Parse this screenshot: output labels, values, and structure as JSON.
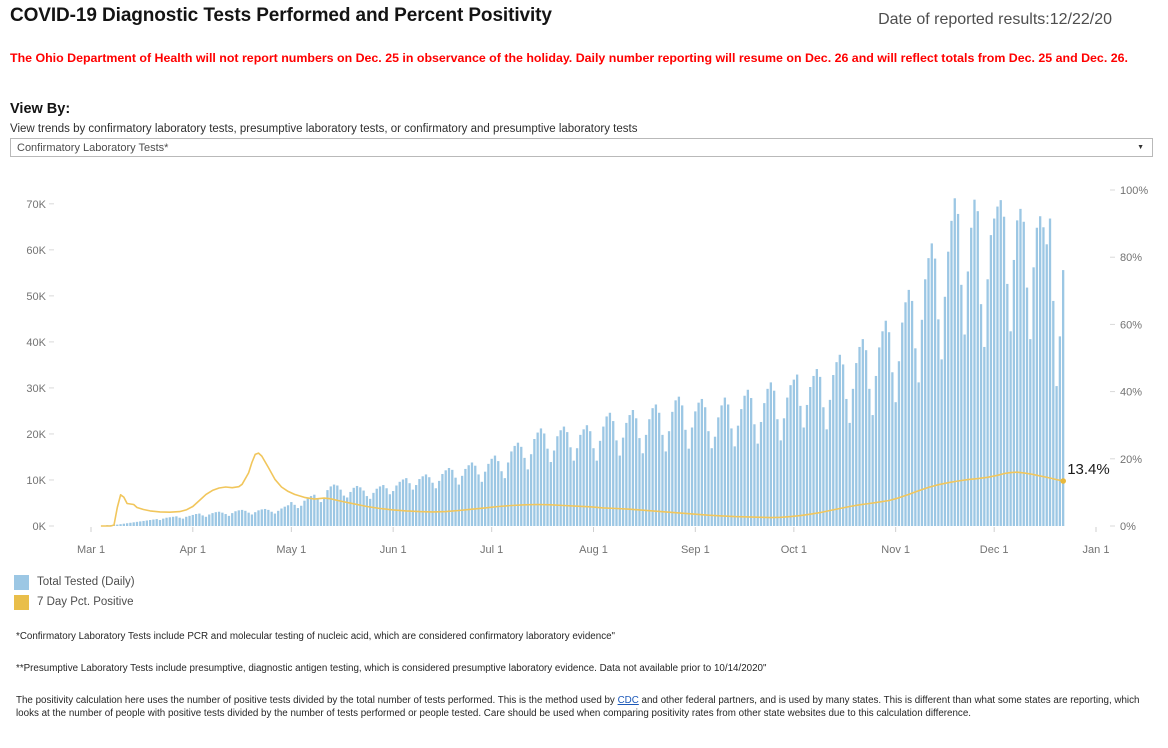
{
  "header": {
    "title": "COVID-19 Diagnostic Tests Performed and Percent Positivity",
    "date_label": "Date of reported results:12/22/20"
  },
  "alert_text": "The Ohio Department of Health will not report numbers on Dec. 25 in observance of the holiday. Daily number reporting will resume on Dec. 26 and will reflect totals from Dec. 25 and Dec. 26.",
  "view_by": {
    "heading": "View By:",
    "subtitle": "View trends by confirmatory laboratory tests, presumptive laboratory tests, or confirmatory and presumptive laboratory tests",
    "selected_option": "Confirmatory Laboratory Tests*"
  },
  "legend": {
    "items": [
      {
        "label": "Total Tested (Daily)",
        "color": "#9CC7E4"
      },
      {
        "label": "7 Day Pct. Positive",
        "color": "#E9BE4A"
      }
    ]
  },
  "footnotes": {
    "confirmatory": "*Confirmatory Laboratory Tests include PCR and molecular testing of nucleic acid, which are considered confirmatory laboratory evidence\"",
    "presumptive": "**Presumptive Laboratory Tests include presumptive, diagnostic antigen testing, which is considered presumptive laboratory evidence. Data not available prior to 10/14/2020\"",
    "method_pre": "The positivity calculation here uses the number of positive tests divided by the total number of tests performed. This is the method used by ",
    "method_link": "CDC",
    "method_post": " and other federal partners, and is used by many states. This is different than what some states are reporting, which looks at the number of people with positive tests divided by the number of tests performed or people tested. Care should be used when comparing positivity rates from other state websites due to this calculation difference."
  },
  "chart_data": {
    "type": "bar",
    "subtype": "combo-bar-line-dual-axis",
    "title": "COVID-19 Diagnostic Tests Performed and Percent Positivity",
    "x_start_label": "Mar 1",
    "x_end_label": "Jan 1",
    "grid": false,
    "legend_position": "bottom-left",
    "ylim_left": [
      0,
      73
    ],
    "ylim_right": [
      0,
      100
    ],
    "left_axis_unit": "K tests",
    "right_axis_unit": "percent",
    "left_ticks": [
      {
        "label": "0K",
        "value": 0
      },
      {
        "label": "10K",
        "value": 10
      },
      {
        "label": "20K",
        "value": 20
      },
      {
        "label": "30K",
        "value": 30
      },
      {
        "label": "40K",
        "value": 40
      },
      {
        "label": "50K",
        "value": 50
      },
      {
        "label": "60K",
        "value": 60
      },
      {
        "label": "70K",
        "value": 70
      }
    ],
    "right_ticks": [
      {
        "label": "0%",
        "value": 0
      },
      {
        "label": "20%",
        "value": 20
      },
      {
        "label": "40%",
        "value": 40
      },
      {
        "label": "60%",
        "value": 60
      },
      {
        "label": "80%",
        "value": 80
      },
      {
        "label": "100%",
        "value": 100
      }
    ],
    "x_ticks": [
      {
        "label": "Mar 1",
        "day": 0
      },
      {
        "label": "Apr 1",
        "day": 31
      },
      {
        "label": "May 1",
        "day": 61
      },
      {
        "label": "Jun 1",
        "day": 92
      },
      {
        "label": "Jul 1",
        "day": 122
      },
      {
        "label": "Aug 1",
        "day": 153
      },
      {
        "label": "Sep 1",
        "day": 184
      },
      {
        "label": "Oct 1",
        "day": 214
      },
      {
        "label": "Nov 1",
        "day": 245
      },
      {
        "label": "Dec 1",
        "day": 275
      },
      {
        "label": "Jan 1",
        "day": 306
      }
    ],
    "colors": {
      "bar": "#9CC7E4",
      "line": "#F1C65C",
      "dot": "#E8B83C",
      "axis_text": "#737373",
      "tick": "#d9d9d9"
    },
    "series_bars": {
      "name": "Total Tested (Daily)",
      "unit_thousands": true,
      "start_day": 0,
      "values": [
        0,
        0,
        0,
        0,
        0.1,
        0.2,
        0.2,
        0.3,
        0.3,
        0.4,
        0.5,
        0.6,
        0.7,
        0.8,
        0.9,
        1.0,
        1.1,
        1.2,
        1.3,
        1.4,
        1.5,
        1.3,
        1.6,
        1.8,
        1.9,
        2.0,
        2.1,
        1.8,
        1.6,
        2.0,
        2.2,
        2.4,
        2.6,
        2.7,
        2.3,
        2.0,
        2.5,
        2.8,
        3.0,
        3.1,
        2.9,
        2.6,
        2.2,
        2.8,
        3.2,
        3.4,
        3.5,
        3.3,
        2.9,
        2.5,
        3.0,
        3.4,
        3.6,
        3.7,
        3.5,
        3.1,
        2.7,
        3.3,
        3.8,
        4.2,
        4.5,
        5.2,
        4.6,
        3.9,
        4.4,
        5.5,
        6.2,
        6.5,
        6.8,
        6.0,
        5.2,
        6.1,
        7.8,
        8.6,
        9.0,
        8.8,
        7.9,
        6.6,
        6.2,
        7.4,
        8.3,
        8.7,
        8.4,
        7.7,
        6.5,
        5.9,
        7.2,
        8.1,
        8.6,
        8.9,
        8.2,
        6.9,
        7.6,
        8.8,
        9.6,
        10.1,
        10.4,
        9.3,
        7.9,
        8.9,
        10.2,
        10.8,
        11.2,
        10.6,
        9.4,
        8.2,
        9.8,
        11.3,
        12.1,
        12.6,
        12.2,
        10.5,
        9.0,
        10.9,
        12.4,
        13.2,
        13.8,
        13.1,
        11.2,
        9.6,
        11.8,
        13.5,
        14.6,
        15.3,
        14.1,
        11.9,
        10.4,
        13.8,
        16.2,
        17.4,
        18.1,
        17.2,
        14.8,
        12.3,
        15.6,
        18.9,
        20.3,
        21.2,
        20.1,
        16.8,
        13.9,
        16.4,
        19.5,
        20.8,
        21.6,
        20.4,
        17.1,
        14.2,
        16.9,
        19.8,
        21.0,
        21.9,
        20.6,
        16.9,
        14.2,
        18.5,
        21.6,
        23.8,
        24.6,
        22.8,
        18.6,
        15.3,
        19.2,
        22.4,
        24.1,
        25.2,
        23.4,
        19.1,
        15.8,
        19.8,
        23.2,
        25.6,
        26.4,
        24.6,
        19.8,
        16.2,
        20.6,
        24.8,
        27.3,
        28.1,
        26.2,
        20.9,
        16.8,
        21.4,
        24.9,
        26.8,
        27.6,
        25.8,
        20.6,
        16.9,
        19.4,
        23.6,
        26.2,
        27.9,
        26.4,
        21.2,
        17.3,
        21.8,
        25.4,
        28.3,
        29.6,
        27.8,
        22.1,
        17.9,
        22.6,
        26.7,
        29.8,
        31.2,
        29.4,
        23.2,
        18.6,
        23.4,
        27.9,
        30.6,
        31.8,
        32.9,
        26.1,
        21.4,
        26.3,
        30.2,
        32.6,
        34.1,
        32.4,
        25.8,
        21.0,
        27.4,
        32.8,
        35.6,
        37.2,
        35.1,
        27.6,
        22.4,
        29.8,
        35.4,
        38.9,
        40.6,
        38.2,
        29.8,
        24.1,
        32.6,
        38.8,
        42.3,
        44.6,
        42.1,
        33.4,
        26.9,
        35.8,
        44.2,
        48.6,
        51.3,
        48.9,
        38.6,
        31.2,
        44.8,
        53.6,
        58.2,
        61.4,
        58.1,
        44.9,
        36.2,
        49.8,
        59.6,
        66.3,
        71.2,
        67.8,
        52.4,
        41.6,
        55.3,
        64.8,
        70.9,
        68.4,
        48.2,
        38.9,
        53.6,
        63.2,
        66.8,
        69.4,
        70.8,
        67.2,
        52.6,
        42.3,
        57.8,
        66.4,
        68.9,
        66.1,
        51.8,
        40.6,
        56.2,
        64.8,
        67.3,
        64.9,
        61.2,
        66.8,
        48.9,
        30.4,
        41.2,
        55.6
      ]
    },
    "series_line": {
      "name": "7 Day Pct. Positive",
      "unit": "percent",
      "points": [
        [
          3,
          0
        ],
        [
          6,
          0
        ],
        [
          7,
          0.3
        ],
        [
          8,
          5.5
        ],
        [
          9,
          9.3
        ],
        [
          10,
          8.6
        ],
        [
          11,
          6.7
        ],
        [
          13,
          6.4
        ],
        [
          14,
          5.5
        ],
        [
          16,
          4.9
        ],
        [
          18,
          4.5
        ],
        [
          21,
          4.2
        ],
        [
          24,
          4.1
        ],
        [
          27,
          4.3
        ],
        [
          29,
          4.8
        ],
        [
          31,
          5.8
        ],
        [
          33,
          7.6
        ],
        [
          35,
          9.4
        ],
        [
          37,
          10.6
        ],
        [
          39,
          11.3
        ],
        [
          41,
          11.6
        ],
        [
          43,
          11.4
        ],
        [
          45,
          11.7
        ],
        [
          46,
          12.4
        ],
        [
          48,
          15.8
        ],
        [
          49,
          18.9
        ],
        [
          50,
          21.3
        ],
        [
          51,
          21.7
        ],
        [
          52,
          20.8
        ],
        [
          54,
          17.4
        ],
        [
          56,
          13.9
        ],
        [
          58,
          11.6
        ],
        [
          60,
          10.3
        ],
        [
          62,
          9.4
        ],
        [
          65,
          8.5
        ],
        [
          68,
          8.0
        ],
        [
          71,
          8.3
        ],
        [
          73,
          8.1
        ],
        [
          76,
          7.4
        ],
        [
          80,
          6.6
        ],
        [
          84,
          5.8
        ],
        [
          88,
          5.2
        ],
        [
          92,
          4.8
        ],
        [
          96,
          4.5
        ],
        [
          100,
          4.3
        ],
        [
          104,
          4.2
        ],
        [
          108,
          4.3
        ],
        [
          112,
          4.6
        ],
        [
          116,
          5.0
        ],
        [
          120,
          5.4
        ],
        [
          124,
          5.8
        ],
        [
          128,
          6.1
        ],
        [
          132,
          6.3
        ],
        [
          136,
          6.4
        ],
        [
          140,
          6.3
        ],
        [
          144,
          6.1
        ],
        [
          148,
          5.9
        ],
        [
          152,
          5.7
        ],
        [
          156,
          5.4
        ],
        [
          160,
          5.2
        ],
        [
          164,
          5.0
        ],
        [
          168,
          4.7
        ],
        [
          172,
          4.4
        ],
        [
          176,
          4.1
        ],
        [
          180,
          3.8
        ],
        [
          184,
          3.5
        ],
        [
          188,
          3.2
        ],
        [
          192,
          3.0
        ],
        [
          196,
          2.8
        ],
        [
          200,
          2.7
        ],
        [
          204,
          2.6
        ],
        [
          207,
          2.5
        ],
        [
          210,
          2.6
        ],
        [
          213,
          2.8
        ],
        [
          216,
          3.1
        ],
        [
          219,
          3.5
        ],
        [
          222,
          4.0
        ],
        [
          225,
          4.6
        ],
        [
          228,
          5.2
        ],
        [
          231,
          5.8
        ],
        [
          234,
          6.3
        ],
        [
          237,
          6.7
        ],
        [
          240,
          7.1
        ],
        [
          243,
          7.6
        ],
        [
          246,
          8.4
        ],
        [
          249,
          9.4
        ],
        [
          252,
          10.5
        ],
        [
          255,
          11.5
        ],
        [
          258,
          12.3
        ],
        [
          261,
          12.9
        ],
        [
          264,
          13.4
        ],
        [
          267,
          13.8
        ],
        [
          270,
          14.1
        ],
        [
          273,
          14.5
        ],
        [
          276,
          15.1
        ],
        [
          278,
          15.6
        ],
        [
          280,
          15.9
        ],
        [
          282,
          16.0
        ],
        [
          284,
          15.8
        ],
        [
          286,
          15.5
        ],
        [
          288,
          15.1
        ],
        [
          290,
          14.7
        ],
        [
          292,
          14.3
        ],
        [
          294,
          13.8
        ],
        [
          296,
          13.4
        ]
      ],
      "end_annotation": "13.4%"
    }
  }
}
